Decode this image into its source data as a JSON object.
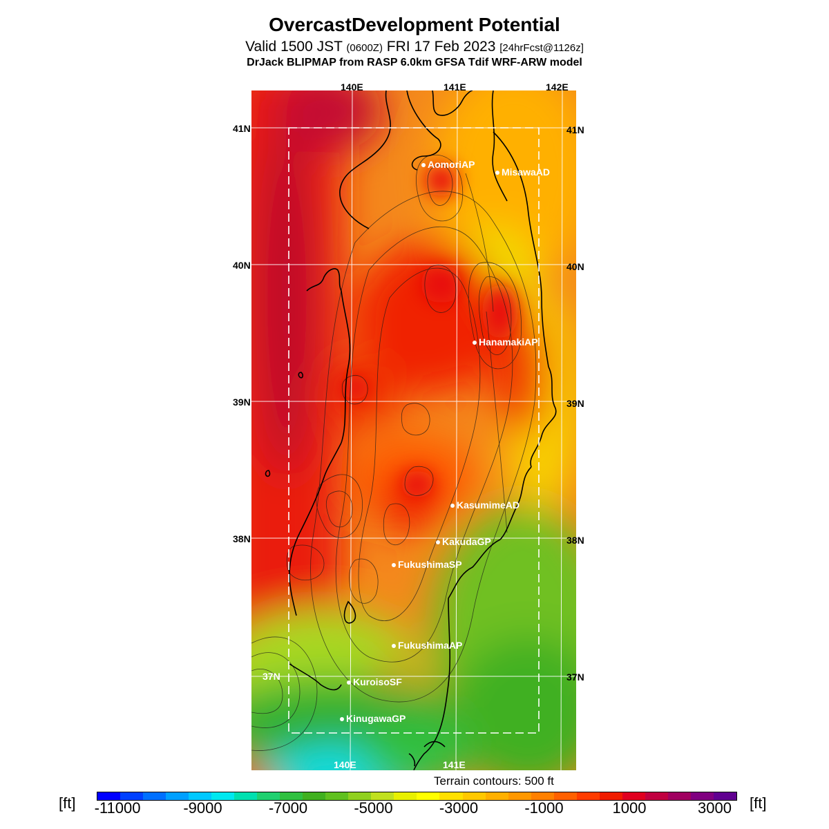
{
  "header": {
    "title": "OvercastDevelopment Potential",
    "valid_prefix": "Valid 1500 JST",
    "valid_utc": "(0600Z)",
    "valid_date": "FRI 17 Feb 2023",
    "forecast_info": "[24hrFcst@1126z]",
    "model_line": "DrJack BLIPMAP from RASP 6.0km GFSA Tdif WRF-ARW model"
  },
  "axes": {
    "top": [
      "140E",
      "141E",
      "142E"
    ],
    "bottom": [
      "140E",
      "141E"
    ],
    "left": [
      "41N",
      "40N",
      "39N",
      "38N",
      "37N"
    ],
    "right": [
      "41N",
      "40N",
      "39N",
      "38N",
      "37N"
    ]
  },
  "stations": [
    {
      "name": "AomoriAP"
    },
    {
      "name": "MisawaAD"
    },
    {
      "name": "HanamakiAP"
    },
    {
      "name": "KasumimeAD"
    },
    {
      "name": "KakudaGP"
    },
    {
      "name": "FukushimaSP"
    },
    {
      "name": "FukushimaAP"
    },
    {
      "name": "KuroisoSF"
    },
    {
      "name": "KinugawaGP"
    }
  ],
  "footer": {
    "terrain_note": "Terrain contours: 500 ft",
    "unit_left": "[ft]",
    "unit_right": "[ft]"
  },
  "colorbar": {
    "tick_labels": [
      "-11000",
      "-9000",
      "-7000",
      "-5000",
      "-3000",
      "-1000",
      "1000",
      "3000"
    ],
    "colors": [
      "#0000ff",
      "#0040ff",
      "#0070ff",
      "#00a0ff",
      "#00c8ff",
      "#00e8f0",
      "#00e0b0",
      "#20d070",
      "#30c040",
      "#40b020",
      "#60c020",
      "#90d020",
      "#c0e020",
      "#e8f000",
      "#ffff00",
      "#ffe000",
      "#ffc800",
      "#ffb000",
      "#ff9800",
      "#ff8000",
      "#ff6000",
      "#ff3c00",
      "#f01c00",
      "#e00020",
      "#c00040",
      "#a00060",
      "#800080",
      "#600090"
    ]
  }
}
